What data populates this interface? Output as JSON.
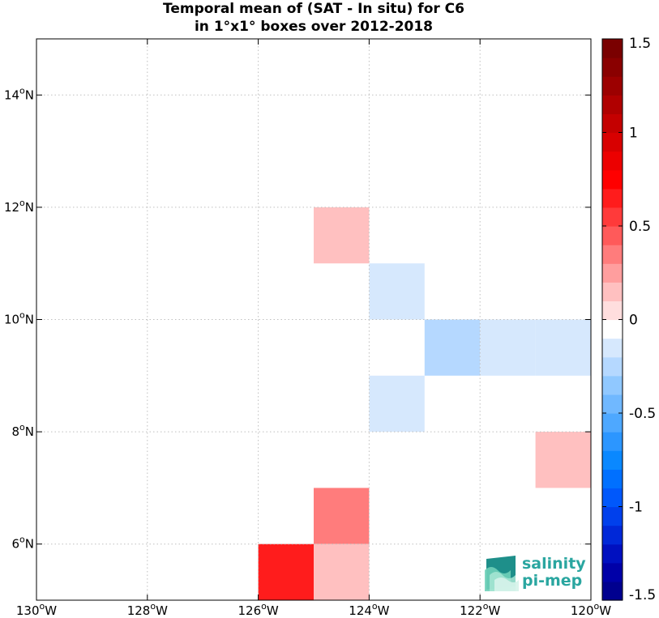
{
  "title": {
    "line1": "Temporal mean of (SAT - In situ) for C6",
    "line2": "in 1°x1° boxes over 2012-2018"
  },
  "logo": {
    "line1": "salinity",
    "line2": "pi-mep"
  },
  "chart_data": {
    "type": "heatmap",
    "xlim": [
      -130,
      -120
    ],
    "ylim": [
      5,
      15
    ],
    "x_ticks": [
      {
        "value": -130,
        "deg": "130",
        "hemi": "W"
      },
      {
        "value": -128,
        "deg": "128",
        "hemi": "W"
      },
      {
        "value": -126,
        "deg": "126",
        "hemi": "W"
      },
      {
        "value": -124,
        "deg": "124",
        "hemi": "W"
      },
      {
        "value": -122,
        "deg": "122",
        "hemi": "W"
      },
      {
        "value": -120,
        "deg": "120",
        "hemi": "W"
      }
    ],
    "y_ticks": [
      {
        "value": 6,
        "deg": "6",
        "hemi": "N"
      },
      {
        "value": 8,
        "deg": "8",
        "hemi": "N"
      },
      {
        "value": 10,
        "deg": "10",
        "hemi": "N"
      },
      {
        "value": 12,
        "deg": "12",
        "hemi": "N"
      },
      {
        "value": 14,
        "deg": "14",
        "hemi": "N"
      }
    ],
    "grid": true,
    "cells": [
      {
        "lon": -125,
        "lat": 11,
        "value": 0.15
      },
      {
        "lon": -124,
        "lat": 10,
        "value": -0.1
      },
      {
        "lon": -123,
        "lat": 9,
        "value": -0.25
      },
      {
        "lon": -122,
        "lat": 9,
        "value": -0.1
      },
      {
        "lon": -121,
        "lat": 9,
        "value": -0.1
      },
      {
        "lon": -124,
        "lat": 8,
        "value": -0.1
      },
      {
        "lon": -121,
        "lat": 7,
        "value": 0.15
      },
      {
        "lon": -125,
        "lat": 6,
        "value": 0.3
      },
      {
        "lon": -126,
        "lat": 5,
        "value": 0.6
      },
      {
        "lon": -125,
        "lat": 5,
        "value": 0.15
      }
    ],
    "colorbar": {
      "range": [
        -1.5,
        1.5
      ],
      "ticks": [
        {
          "value": 1.5,
          "label": "1.5"
        },
        {
          "value": 1,
          "label": "1"
        },
        {
          "value": 0.5,
          "label": "0.5"
        },
        {
          "value": 0,
          "label": "0"
        },
        {
          "value": -0.5,
          "label": "-0.5"
        },
        {
          "value": -1,
          "label": "-1"
        },
        {
          "value": -1.5,
          "label": "-1.5"
        }
      ],
      "colors": [
        "#00008f",
        "#0000a8",
        "#0010c0",
        "#0028d8",
        "#0040ec",
        "#0058fb",
        "#0070ff",
        "#0a88ff",
        "#2c96ff",
        "#4ea8ff",
        "#70b8ff",
        "#90c8ff",
        "#b5d8ff",
        "#d6e8fd",
        "#ffffff",
        "#ffdede",
        "#ffc0c0",
        "#ff9e9e",
        "#ff7c7c",
        "#ff5a5a",
        "#ff3a3a",
        "#ff1c1c",
        "#ff0000",
        "#ec0000",
        "#d80000",
        "#c40000",
        "#b00000",
        "#9c0000",
        "#8a0000",
        "#7a0000"
      ]
    }
  }
}
